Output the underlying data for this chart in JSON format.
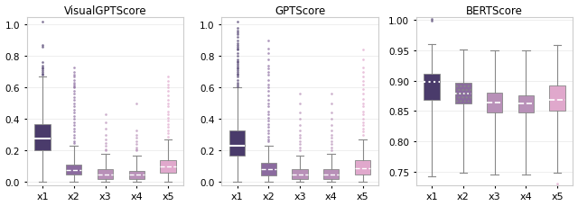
{
  "titles": [
    "VisualGPTScore",
    "GPTScore",
    "BERTScore"
  ],
  "categories": [
    "x1",
    "x2",
    "x3",
    "x4",
    "x5"
  ],
  "colors": [
    "#4a3b6b",
    "#8b6b9f",
    "#b890b8",
    "#b890b8",
    "#e0a8cc"
  ],
  "panels": [
    {
      "name": "VisualGPTScore",
      "ylim": [
        -0.02,
        1.05
      ],
      "yticks": [
        0.0,
        0.2,
        0.4,
        0.6,
        0.8,
        1.0
      ],
      "boxes": [
        {
          "q1": 0.2,
          "median": 0.275,
          "q3": 0.37,
          "whislo": 0.0,
          "whishi": 0.67,
          "fliers": [
            1.02,
            0.87,
            0.86,
            0.76,
            0.74,
            0.73,
            0.72,
            0.71,
            0.7,
            0.69,
            0.68
          ]
        },
        {
          "q1": 0.05,
          "median": 0.075,
          "q3": 0.11,
          "whislo": 0.0,
          "whishi": 0.23,
          "fliers": [
            0.73,
            0.7,
            0.68,
            0.67,
            0.65,
            0.63,
            0.62,
            0.61,
            0.6,
            0.58,
            0.56,
            0.54,
            0.52,
            0.5,
            0.48,
            0.46,
            0.44,
            0.42,
            0.4,
            0.38,
            0.36,
            0.34,
            0.32,
            0.3,
            0.28,
            0.26,
            0.25
          ]
        },
        {
          "q1": 0.02,
          "median": 0.05,
          "q3": 0.08,
          "whislo": 0.0,
          "whishi": 0.18,
          "fliers": [
            0.43,
            0.38,
            0.34,
            0.3,
            0.27,
            0.25,
            0.23,
            0.21,
            0.2
          ]
        },
        {
          "q1": 0.02,
          "median": 0.05,
          "q3": 0.07,
          "whislo": 0.0,
          "whishi": 0.17,
          "fliers": [
            0.5,
            0.33,
            0.3,
            0.28,
            0.26,
            0.24,
            0.22,
            0.21,
            0.2
          ]
        },
        {
          "q1": 0.06,
          "median": 0.1,
          "q3": 0.14,
          "whislo": 0.0,
          "whishi": 0.27,
          "fliers": [
            0.67,
            0.64,
            0.62,
            0.6,
            0.58,
            0.55,
            0.52,
            0.5,
            0.48,
            0.45,
            0.43,
            0.41,
            0.39,
            0.37,
            0.35,
            0.33,
            0.31,
            0.29
          ]
        }
      ]
    },
    {
      "name": "GPTScore",
      "ylim": [
        -0.02,
        1.05
      ],
      "yticks": [
        0.0,
        0.2,
        0.4,
        0.6,
        0.8,
        1.0
      ],
      "boxes": [
        {
          "q1": 0.17,
          "median": 0.23,
          "q3": 0.33,
          "whislo": 0.0,
          "whishi": 0.6,
          "fliers": [
            1.02,
            0.98,
            0.96,
            0.95,
            0.94,
            0.92,
            0.9,
            0.88,
            0.87,
            0.86,
            0.85,
            0.84,
            0.82,
            0.8,
            0.78,
            0.77,
            0.76,
            0.75,
            0.74,
            0.73,
            0.72,
            0.71,
            0.7,
            0.69,
            0.68,
            0.67,
            0.65,
            0.63,
            0.62,
            0.61
          ]
        },
        {
          "q1": 0.04,
          "median": 0.08,
          "q3": 0.12,
          "whislo": 0.0,
          "whishi": 0.23,
          "fliers": [
            0.9,
            0.85,
            0.82,
            0.78,
            0.74,
            0.72,
            0.7,
            0.68,
            0.65,
            0.62,
            0.6,
            0.58,
            0.55,
            0.52,
            0.5,
            0.48,
            0.45,
            0.43,
            0.41,
            0.39,
            0.37,
            0.35,
            0.33,
            0.31,
            0.29,
            0.27,
            0.26
          ]
        },
        {
          "q1": 0.02,
          "median": 0.05,
          "q3": 0.08,
          "whislo": 0.0,
          "whishi": 0.17,
          "fliers": [
            0.56,
            0.5,
            0.44,
            0.4,
            0.36,
            0.33,
            0.3,
            0.28,
            0.26,
            0.24,
            0.22,
            0.2
          ]
        },
        {
          "q1": 0.02,
          "median": 0.05,
          "q3": 0.08,
          "whislo": 0.0,
          "whishi": 0.18,
          "fliers": [
            0.56,
            0.5,
            0.44,
            0.4,
            0.36,
            0.33,
            0.3,
            0.28,
            0.26,
            0.24,
            0.22,
            0.2
          ]
        },
        {
          "q1": 0.05,
          "median": 0.09,
          "q3": 0.14,
          "whislo": 0.0,
          "whishi": 0.27,
          "fliers": [
            0.84,
            0.78,
            0.73,
            0.7,
            0.67,
            0.64,
            0.62,
            0.59,
            0.56,
            0.53,
            0.5,
            0.48,
            0.45,
            0.43,
            0.4,
            0.38,
            0.36,
            0.34,
            0.32,
            0.3
          ]
        }
      ]
    },
    {
      "name": "BERTScore",
      "ylim": [
        0.728,
        1.005
      ],
      "yticks": [
        0.75,
        0.8,
        0.85,
        0.9,
        0.95,
        1.0
      ],
      "boxes": [
        {
          "q1": 0.868,
          "median": 0.898,
          "q3": 0.912,
          "whislo": 0.742,
          "whishi": 0.96,
          "fliers": [
            1.002,
            0.998
          ]
        },
        {
          "q1": 0.863,
          "median": 0.879,
          "q3": 0.896,
          "whislo": 0.748,
          "whishi": 0.952,
          "fliers": []
        },
        {
          "q1": 0.848,
          "median": 0.864,
          "q3": 0.88,
          "whislo": 0.745,
          "whishi": 0.95,
          "fliers": []
        },
        {
          "q1": 0.848,
          "median": 0.863,
          "q3": 0.876,
          "whislo": 0.745,
          "whishi": 0.95,
          "fliers": []
        },
        {
          "q1": 0.85,
          "median": 0.868,
          "q3": 0.892,
          "whislo": 0.748,
          "whishi": 0.958,
          "fliers": [
            0.73,
            0.728
          ]
        }
      ]
    }
  ],
  "figsize": [
    6.4,
    2.3
  ],
  "dpi": 100
}
